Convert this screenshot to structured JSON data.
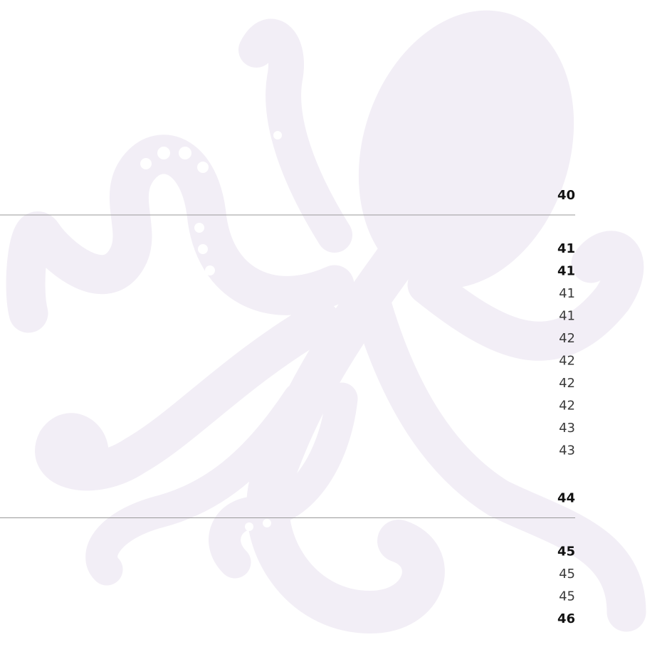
{
  "toc": {
    "sections": [
      {
        "page": 40,
        "items": [
          {
            "page": 41,
            "bold": true
          },
          {
            "page": 41,
            "bold": true
          },
          {
            "page": 41,
            "bold": false
          },
          {
            "page": 41,
            "bold": false
          },
          {
            "page": 42,
            "bold": false
          },
          {
            "page": 42,
            "bold": false
          },
          {
            "page": 42,
            "bold": false
          },
          {
            "page": 42,
            "bold": false
          },
          {
            "page": 43,
            "bold": false
          },
          {
            "page": 43,
            "bold": false
          }
        ]
      },
      {
        "page": 44,
        "items": [
          {
            "page": 45,
            "bold": true
          },
          {
            "page": 45,
            "bold": false
          },
          {
            "page": 45,
            "bold": false
          },
          {
            "page": 46,
            "bold": true
          }
        ]
      }
    ]
  }
}
